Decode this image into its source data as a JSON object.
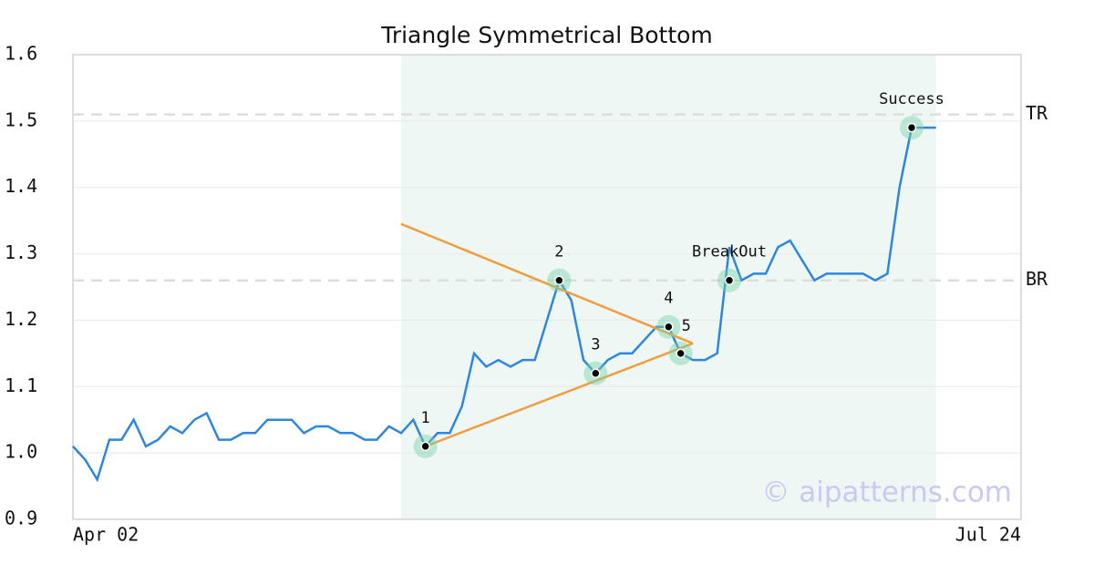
{
  "chart_data": {
    "type": "line",
    "title": "Triangle Symmetrical Bottom",
    "x": [
      0,
      1,
      2,
      3,
      4,
      5,
      6,
      7,
      8,
      9,
      10,
      11,
      12,
      13,
      14,
      15,
      16,
      17,
      18,
      19,
      20,
      21,
      22,
      23,
      24,
      25,
      26,
      27,
      28,
      29,
      30,
      31,
      32,
      33,
      34,
      35,
      36,
      37,
      38,
      39,
      40,
      41,
      42,
      43,
      44,
      45,
      46,
      47,
      48,
      49,
      50,
      51,
      52,
      53,
      54,
      55,
      56,
      57,
      58,
      59,
      60,
      61,
      62,
      63,
      64,
      65,
      66,
      67,
      68,
      69,
      70,
      71
    ],
    "values": [
      1.01,
      0.99,
      0.96,
      1.02,
      1.02,
      1.05,
      1.01,
      1.02,
      1.04,
      1.03,
      1.05,
      1.06,
      1.02,
      1.02,
      1.03,
      1.03,
      1.05,
      1.05,
      1.05,
      1.03,
      1.04,
      1.04,
      1.03,
      1.03,
      1.02,
      1.02,
      1.04,
      1.03,
      1.05,
      1.01,
      1.03,
      1.03,
      1.07,
      1.15,
      1.13,
      1.14,
      1.13,
      1.14,
      1.14,
      1.2,
      1.26,
      1.23,
      1.14,
      1.12,
      1.14,
      1.15,
      1.15,
      1.17,
      1.19,
      1.19,
      1.15,
      1.14,
      1.14,
      1.15,
      1.31,
      1.26,
      1.27,
      1.27,
      1.31,
      1.32,
      1.29,
      1.26,
      1.27,
      1.27,
      1.27,
      1.27,
      1.26,
      1.27,
      1.4,
      1.49,
      1.49,
      1.49
    ],
    "color": "#2e86de",
    "xlim": [
      0,
      78
    ],
    "xticks": [
      {
        "value": 0,
        "label": "Apr 02"
      },
      {
        "value": 78,
        "label": "Jul 24"
      }
    ],
    "ylim": [
      0.9,
      1.6
    ],
    "yticks": [
      0.9,
      {
        "value": 1,
        "label": "1.0"
      },
      1.1,
      1.2,
      1.3,
      1.4,
      1.5,
      1.6
    ],
    "grid": true,
    "highlight_range": [
      27,
      71
    ],
    "highlight_color": "#eef7f3",
    "trendlines": [
      {
        "x": [
          27,
          51
        ],
        "values": [
          1.345,
          1.165
        ],
        "color": "#f39c3d"
      },
      {
        "x": [
          29,
          51
        ],
        "values": [
          1.01,
          1.165
        ],
        "color": "#f39c3d"
      }
    ],
    "levels": [
      {
        "label": "TR",
        "value": 1.51
      },
      {
        "label": "BR",
        "value": 1.26
      }
    ],
    "points": [
      {
        "label": "1",
        "x": 29,
        "value": 1.01
      },
      {
        "label": "2",
        "x": 40,
        "value": 1.26
      },
      {
        "label": "3",
        "x": 43,
        "value": 1.12
      },
      {
        "label": "4",
        "x": 49,
        "value": 1.19
      },
      {
        "label": "5",
        "x": 50,
        "value": 1.15
      },
      {
        "label": "BreakOut",
        "x": 54,
        "value": 1.26
      },
      {
        "label": "Success",
        "x": 69,
        "value": 1.49
      }
    ],
    "watermark": "© aipatterns.com"
  }
}
